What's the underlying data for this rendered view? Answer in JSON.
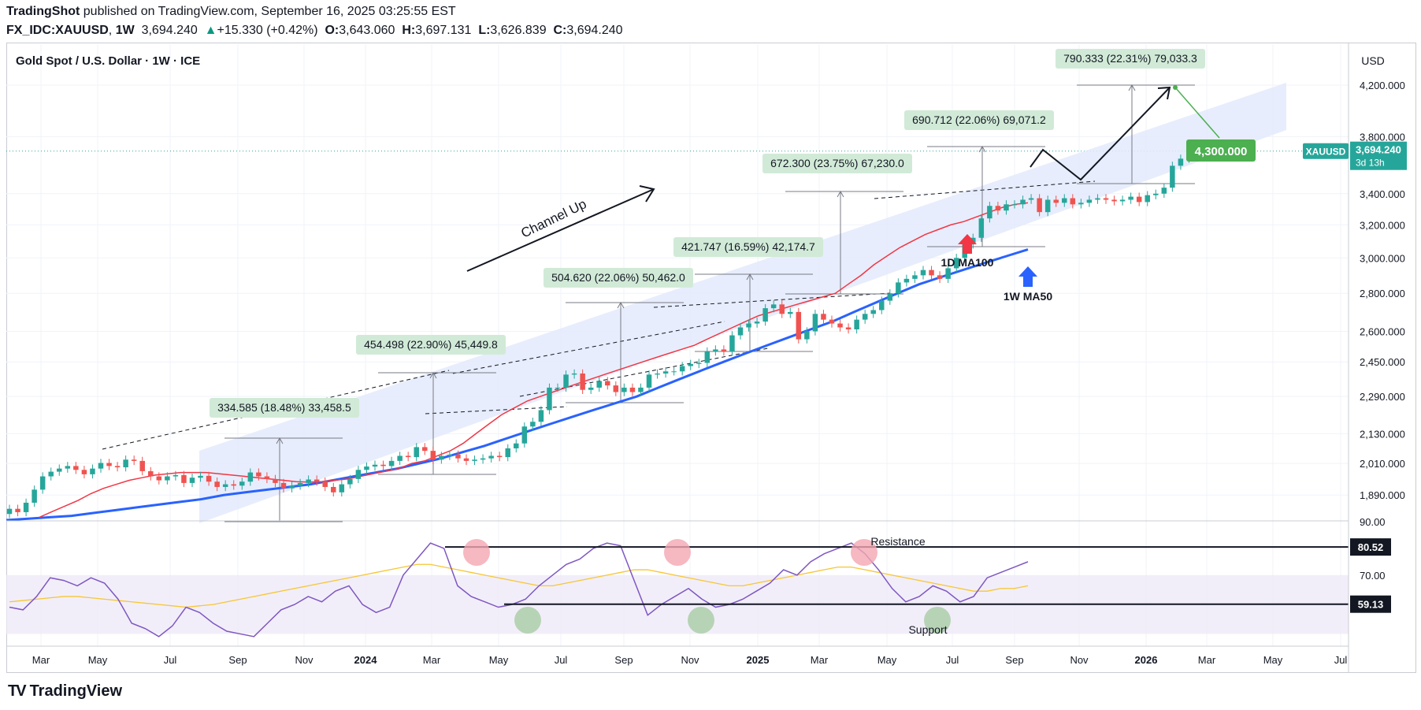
{
  "header": {
    "publisher": "TradingShot",
    "published_text": "published on TradingView.com, September 16, 2025 03:25:55 EST",
    "symbol": "FX_IDC:XAUUSD",
    "interval": "1W",
    "last": "3,694.240",
    "change": "+15.330 (+0.42%)",
    "o_label": "O:",
    "o": "3,643.060",
    "h_label": "H:",
    "h": "3,697.131",
    "l_label": "L:",
    "l": "3,626.839",
    "c_label": "C:",
    "c": "3,694.240"
  },
  "chart_title": "Gold Spot / U.S. Dollar · 1W · ICE",
  "currency": "USD",
  "price_tag": {
    "symbol": "XAUUSD",
    "price": "3,694.240",
    "countdown": "3d 13h"
  },
  "footer": {
    "brand": "TradingView"
  },
  "colors": {
    "up": "#26a69a",
    "down": "#ef5350",
    "channel": "#e3eafc",
    "ma100": "#f23645",
    "ma50": "#2962ff",
    "rsi": "#7e57c2",
    "rsi_ma": "#f7c634",
    "target_box": "#4caf50",
    "measure_box": "#d1ead7"
  },
  "annotations": {
    "channel_up": "Channel Up",
    "ma100_label": "1D MA100",
    "ma50_label": "1W MA50",
    "target": "4,300.000",
    "resistance": "Resistance",
    "support": "Support",
    "measures": [
      "334.585 (18.48%) 33,458.5",
      "454.498 (22.90%) 45,449.8",
      "504.620 (22.06%) 50,462.0",
      "421.747 (16.59%) 42,174.7",
      "672.300 (23.75%) 67,230.0",
      "690.712 (22.06%) 69,071.2",
      "790.333 (22.31%) 79,033.3"
    ]
  },
  "chart_data": [
    {
      "type": "candlestick",
      "title": "Gold Spot / U.S. Dollar · 1W · ICE",
      "xlabel": "",
      "ylabel": "USD",
      "x_ticks": [
        "Mar",
        "May",
        "Jul",
        "Sep",
        "Nov",
        "2024",
        "Mar",
        "May",
        "Jul",
        "Sep",
        "Nov",
        "2025",
        "Mar",
        "May",
        "Jul",
        "Sep",
        "Nov",
        "2026",
        "Mar",
        "May",
        "Jul"
      ],
      "y_ticks": [
        "4,200.000",
        "3,800.000",
        "3,400.000",
        "3,200.000",
        "3,000.000",
        "2,800.000",
        "2,600.000",
        "2,450.000",
        "2,290.000",
        "2,130.000",
        "2,010.000",
        "1,890.000"
      ],
      "y_log_scale": true,
      "ylim": [
        1800,
        4550
      ],
      "last_price": 3694.24,
      "close_series": [
        1840,
        1828,
        1862,
        1910,
        1960,
        1978,
        1990,
        2000,
        1985,
        1968,
        1990,
        2012,
        2000,
        1995,
        2025,
        2020,
        1980,
        1960,
        1945,
        1960,
        1965,
        1935,
        1955,
        1962,
        1940,
        1920,
        1930,
        1925,
        1940,
        1975,
        1960,
        1950,
        1935,
        1915,
        1925,
        1935,
        1948,
        1940,
        1920,
        1900,
        1930,
        1950,
        1985,
        1998,
        2005,
        2000,
        2020,
        2040,
        2035,
        2075,
        2060,
        2025,
        2040,
        2045,
        2030,
        2020,
        2025,
        2030,
        2040,
        2035,
        2070,
        2090,
        2160,
        2180,
        2230,
        2330,
        2330,
        2390,
        2395,
        2320,
        2330,
        2360,
        2340,
        2310,
        2330,
        2310,
        2330,
        2390,
        2395,
        2405,
        2405,
        2430,
        2440,
        2445,
        2500,
        2510,
        2500,
        2580,
        2620,
        2640,
        2650,
        2720,
        2740,
        2690,
        2700,
        2560,
        2600,
        2690,
        2660,
        2640,
        2620,
        2610,
        2660,
        2690,
        2710,
        2760,
        2800,
        2860,
        2880,
        2900,
        2930,
        2900,
        2880,
        2940,
        3000,
        3080,
        3120,
        3240,
        3320,
        3290,
        3330,
        3330,
        3360,
        3370,
        3280,
        3360,
        3340,
        3370,
        3330,
        3340,
        3360,
        3370,
        3360,
        3350,
        3360,
        3380,
        3345,
        3390,
        3400,
        3440,
        3590,
        3640,
        3680,
        3694
      ],
      "ma100_series": [
        1810,
        1830,
        1850,
        1870,
        1895,
        1915,
        1930,
        1945,
        1955,
        1965,
        1970,
        1975,
        1975,
        1975,
        1970,
        1965,
        1960,
        1955,
        1950,
        1945,
        1940,
        1938,
        1940,
        1945,
        1950,
        1960,
        1970,
        1980,
        1990,
        2010,
        2020,
        2040,
        2060,
        2090,
        2130,
        2170,
        2210,
        2240,
        2270,
        2290,
        2310,
        2330,
        2350,
        2370,
        2390,
        2410,
        2430,
        2450,
        2470,
        2490,
        2510,
        2530,
        2560,
        2590,
        2620,
        2650,
        2680,
        2700,
        2720,
        2740,
        2760,
        2780,
        2800,
        2850,
        2900,
        2960,
        3010,
        3060,
        3100,
        3140,
        3170,
        3200,
        3220,
        3250,
        3280,
        3310,
        3330,
        3340
      ],
      "ma50_series": [
        1800,
        1805,
        1810,
        1815,
        1825,
        1835,
        1845,
        1855,
        1865,
        1875,
        1890,
        1900,
        1910,
        1920,
        1930,
        1945,
        1960,
        1975,
        1990,
        2010,
        2030,
        2055,
        2080,
        2110,
        2140,
        2170,
        2200,
        2230,
        2260,
        2290,
        2330,
        2370,
        2410,
        2450,
        2490,
        2530,
        2570,
        2610,
        2650,
        2700,
        2750,
        2800,
        2850,
        2890,
        2930,
        2970,
        3010,
        3050
      ],
      "projection_path": [
        3694,
        3800,
        3500,
        4280
      ],
      "target": 4300
    },
    {
      "type": "line",
      "title": "RSI",
      "y_ticks": [
        "90.00",
        "70.00"
      ],
      "ylim": [
        44,
        90
      ],
      "resistance": 80.52,
      "support": 59.13,
      "rsi_series": [
        58,
        57,
        62,
        69,
        68,
        66,
        69,
        67,
        61,
        52,
        50,
        47,
        51,
        58,
        56,
        52,
        49,
        48,
        47,
        52,
        57,
        59,
        62,
        60,
        64,
        66,
        59,
        56,
        58,
        70,
        76,
        82,
        80,
        66,
        62,
        60,
        58,
        59,
        61,
        66,
        70,
        74,
        76,
        80,
        82,
        81,
        68,
        55,
        59,
        62,
        65,
        61,
        58,
        59,
        61,
        64,
        67,
        72,
        70,
        75,
        78,
        80,
        82,
        78,
        72,
        65,
        60,
        62,
        66,
        64,
        60,
        62,
        69,
        71,
        73,
        75
      ],
      "rsi_ma_series": [
        60,
        60.5,
        61,
        61.5,
        62,
        62,
        61.5,
        61,
        60.5,
        60,
        59.5,
        59,
        58.5,
        58,
        58.5,
        59,
        60,
        61,
        62,
        63,
        64,
        65,
        66,
        67,
        68,
        69,
        70,
        71,
        72,
        73,
        74,
        74,
        73,
        72,
        71,
        70,
        69,
        68,
        67,
        66,
        66,
        67,
        68,
        69,
        70,
        71,
        72,
        72,
        71,
        70,
        69,
        68,
        67,
        66,
        66,
        67,
        68,
        69,
        70,
        71,
        72,
        73,
        73,
        72,
        71,
        70,
        69,
        68,
        67,
        66,
        65,
        64,
        64,
        65,
        65,
        66
      ]
    }
  ]
}
